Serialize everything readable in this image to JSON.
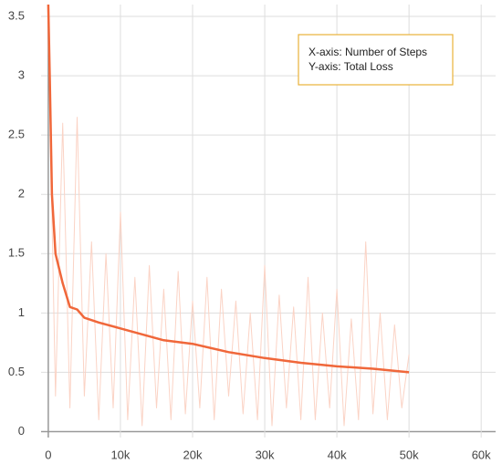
{
  "chart_data": {
    "type": "line",
    "annotation": [
      "X-axis: Number of Steps",
      "Y-axis: Total Loss"
    ],
    "xlim": [
      -1000,
      62000
    ],
    "ylim": [
      -0.05,
      3.6
    ],
    "xticks": [
      0,
      {
        "value": 10000,
        "label": "10k"
      },
      {
        "value": 20000,
        "label": "20k"
      },
      {
        "value": 30000,
        "label": "30k"
      },
      {
        "value": 40000,
        "label": "40k"
      },
      {
        "value": 50000,
        "label": "50k"
      },
      {
        "value": 60000,
        "label": "60k"
      }
    ],
    "yticks": [
      0,
      0.5,
      1,
      1.5,
      2,
      2.5,
      3,
      3.5
    ],
    "grid": true,
    "series": [
      {
        "color": "#fbd3c5",
        "x": [
          0,
          1000,
          2000,
          3000,
          4000,
          5000,
          6000,
          7000,
          8000,
          9000,
          10000,
          11000,
          12000,
          13000,
          14000,
          15000,
          16000,
          17000,
          18000,
          19000,
          20000,
          21000,
          22000,
          23000,
          24000,
          25000,
          26000,
          27000,
          28000,
          29000,
          30000,
          31000,
          32000,
          33000,
          34000,
          35000,
          36000,
          37000,
          38000,
          39000,
          40000,
          41000,
          42000,
          43000,
          44000,
          45000,
          46000,
          47000,
          48000,
          49000,
          50000
        ],
        "values": [
          3.4,
          0.3,
          2.6,
          0.2,
          2.65,
          0.3,
          1.6,
          0.1,
          1.5,
          0.2,
          1.85,
          0.1,
          1.3,
          0.05,
          1.4,
          0.2,
          1.2,
          0.1,
          1.35,
          0.15,
          1.1,
          0.2,
          1.3,
          0.1,
          1.2,
          0.3,
          1.1,
          0.15,
          1.0,
          0.1,
          1.4,
          0.05,
          1.15,
          0.2,
          1.05,
          0.1,
          1.3,
          0.1,
          1.0,
          0.2,
          1.2,
          0.05,
          0.95,
          0.1,
          1.6,
          0.15,
          1.0,
          0.1,
          0.9,
          0.2,
          0.65
        ]
      },
      {
        "color": "#f0673a",
        "x": [
          0,
          200,
          500,
          1000,
          2000,
          3000,
          4000,
          5000,
          7000,
          10000,
          13000,
          16000,
          20000,
          25000,
          30000,
          35000,
          40000,
          45000,
          50000
        ],
        "values": [
          3.6,
          3.0,
          2.0,
          1.5,
          1.25,
          1.05,
          1.03,
          0.96,
          0.92,
          0.87,
          0.82,
          0.77,
          0.74,
          0.67,
          0.62,
          0.58,
          0.55,
          0.53,
          0.5
        ]
      }
    ]
  }
}
